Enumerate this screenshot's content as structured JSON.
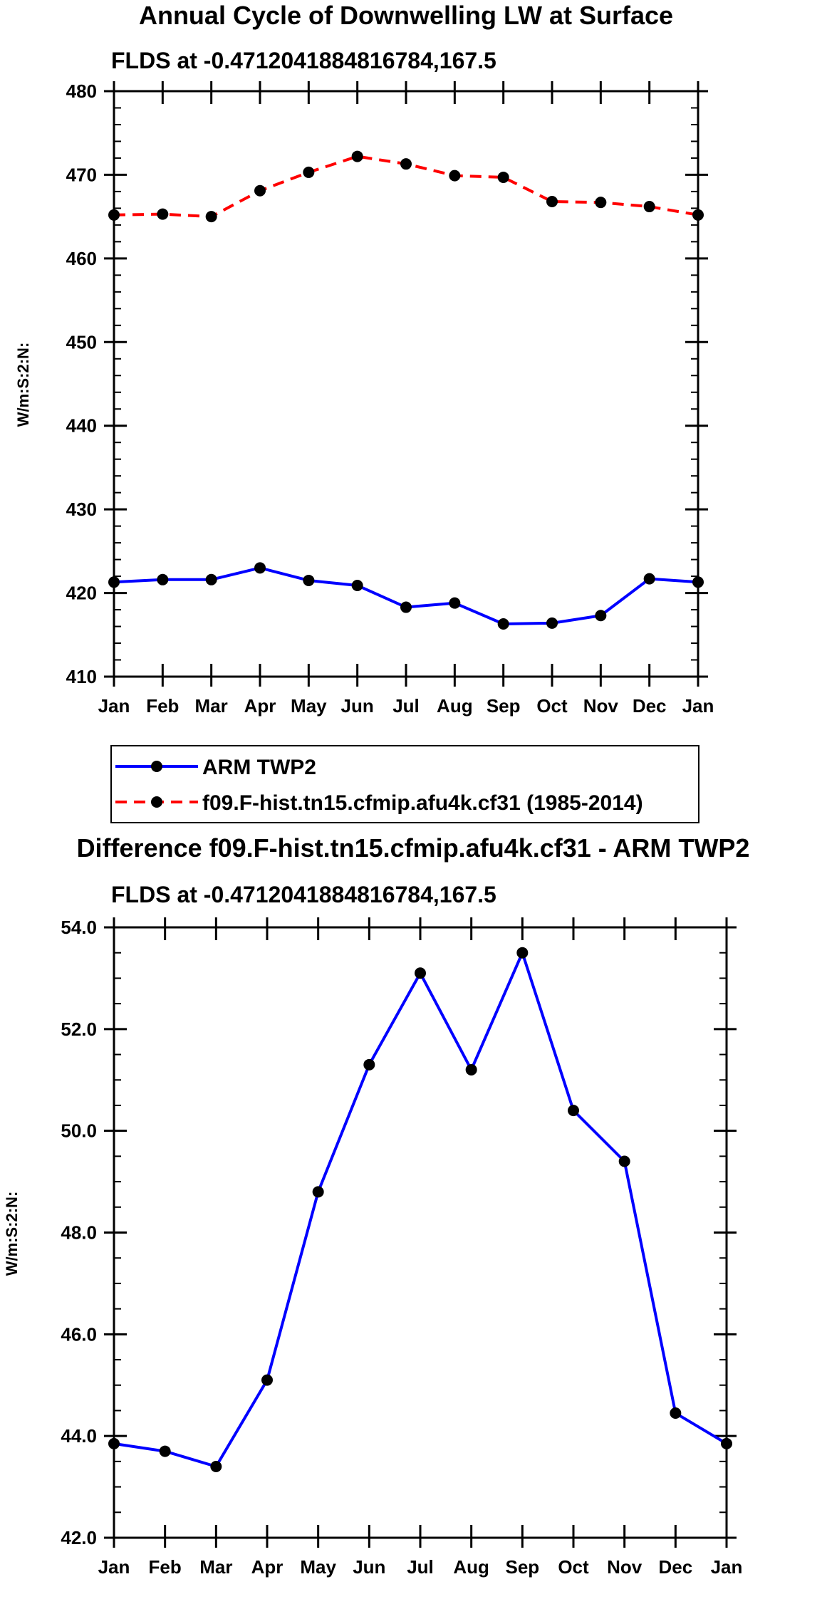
{
  "colors": {
    "model": "#ff0000",
    "obs": "#0000ff",
    "axis": "#000000",
    "marker": "#000000"
  },
  "chart_data": [
    {
      "type": "line",
      "title": "Annual Cycle of Downwelling LW at Surface",
      "subtitle": "FLDS at -0.4712041884816784,167.5",
      "ylabel": "W/m:S:2:N:",
      "categories": [
        "Jan",
        "Feb",
        "Mar",
        "Apr",
        "May",
        "Jun",
        "Jul",
        "Aug",
        "Sep",
        "Oct",
        "Nov",
        "Dec",
        "Jan"
      ],
      "ylim": [
        410,
        480
      ],
      "yticks": [
        410,
        420,
        430,
        440,
        450,
        460,
        470,
        480
      ],
      "ytick_labels": [
        "410",
        "420",
        "430",
        "440",
        "450",
        "460",
        "470",
        "480"
      ],
      "minor_step": 2,
      "series": [
        {
          "name": "ARM TWP2",
          "style": "solid",
          "color": "#0000ff",
          "values": [
            421.3,
            421.6,
            421.6,
            423.0,
            421.5,
            420.9,
            418.3,
            418.8,
            416.3,
            416.4,
            417.3,
            421.7,
            421.3
          ]
        },
        {
          "name": "f09.F-hist.tn15.cfmip.afu4k.cf31 (1985-2014)",
          "style": "dashed",
          "color": "#ff0000",
          "values": [
            465.2,
            465.3,
            465.0,
            468.1,
            470.3,
            472.2,
            471.3,
            469.9,
            469.7,
            466.8,
            466.7,
            466.2,
            465.2
          ]
        }
      ],
      "legend": {
        "placement": "bottom",
        "entries": [
          "ARM TWP2",
          "f09.F-hist.tn15.cfmip.afu4k.cf31 (1985-2014)"
        ]
      }
    },
    {
      "type": "line",
      "title": "Difference f09.F-hist.tn15.cfmip.afu4k.cf31 - ARM TWP2",
      "subtitle": "FLDS at -0.4712041884816784,167.5",
      "ylabel": "W/m:S:2:N:",
      "categories": [
        "Jan",
        "Feb",
        "Mar",
        "Apr",
        "May",
        "Jun",
        "Jul",
        "Aug",
        "Sep",
        "Oct",
        "Nov",
        "Dec",
        "Jan"
      ],
      "ylim": [
        42.0,
        54.0
      ],
      "yticks": [
        42,
        44,
        46,
        48,
        50,
        52,
        54
      ],
      "ytick_labels": [
        "42.0",
        "44.0",
        "46.0",
        "48.0",
        "50.0",
        "52.0",
        "54.0"
      ],
      "minor_step": 0.5,
      "series": [
        {
          "name": "Difference",
          "style": "solid",
          "color": "#0000ff",
          "values": [
            43.85,
            43.7,
            43.4,
            45.1,
            48.8,
            51.3,
            53.1,
            51.2,
            53.5,
            50.4,
            49.4,
            44.45,
            43.85
          ]
        }
      ]
    }
  ]
}
